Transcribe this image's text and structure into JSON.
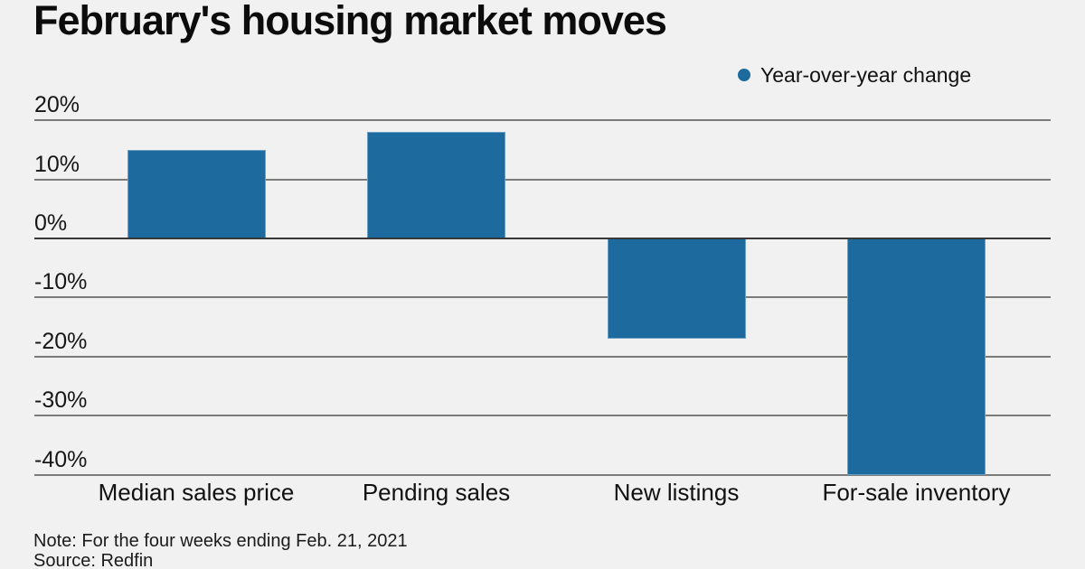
{
  "header": {
    "title": "February's housing market moves"
  },
  "legend": {
    "label": "Year-over-year change"
  },
  "colors": {
    "bar": "#1c6a9e",
    "background": "#f0f1f0",
    "gridline": "#7a7c7a",
    "zero_line": "#37383a"
  },
  "chart_data": {
    "type": "bar",
    "title": "February's housing market moves",
    "series_name": "Year-over-year change",
    "categories": [
      "Median sales price",
      "Pending sales",
      "New listings",
      "For-sale inventory"
    ],
    "values": [
      15,
      18,
      -17,
      -40
    ],
    "unit": "%",
    "xlabel": "",
    "ylabel": "",
    "yticks": [
      20,
      10,
      0,
      -10,
      -20,
      -30,
      -40
    ],
    "ytick_labels": [
      "20%",
      "10%",
      "0%",
      "-10%",
      "-20%",
      "-30%",
      "-40%"
    ],
    "ylim": [
      -40,
      20
    ],
    "grid": true,
    "legend_position": "top-right",
    "note": "Note: For the four weeks ending Feb. 21, 2021",
    "source": "Source: Redfin"
  },
  "footer": {
    "note": "Note: For the four weeks ending Feb. 21, 2021",
    "source": "Source: Redfin"
  }
}
